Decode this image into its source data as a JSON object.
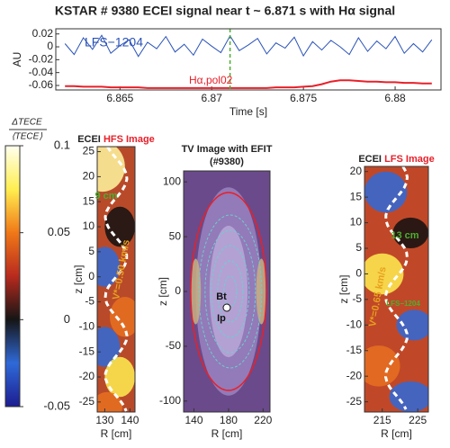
{
  "chart_data": [
    {
      "type": "line",
      "title": "KSTAR # 9380 ECEI signal near t ~ 6.871 s with Hα signal",
      "xlabel": "Time [s]",
      "ylabel": "AU",
      "x": [
        6.862,
        6.8625,
        6.863,
        6.8635,
        6.864,
        6.8645,
        6.865,
        6.8655,
        6.866,
        6.8665,
        6.867,
        6.8675,
        6.868,
        6.8685,
        6.869,
        6.8695,
        6.87,
        6.8705,
        6.871,
        6.8715,
        6.872,
        6.8725,
        6.873,
        6.8735,
        6.874,
        6.8745,
        6.875,
        6.8755,
        6.876,
        6.8765,
        6.877,
        6.8775,
        6.878,
        6.8785,
        6.879,
        6.8795,
        6.88,
        6.8805,
        6.881,
        6.8815,
        6.882
      ],
      "series": [
        {
          "name": "LFS−1204",
          "color": "#2a52b8",
          "values": [
            0.005,
            -0.012,
            0.014,
            -0.004,
            0.018,
            -0.01,
            0.002,
            0.011,
            -0.015,
            0.007,
            -0.003,
            0.016,
            -0.008,
            0.004,
            -0.013,
            0.012,
            0.001,
            -0.009,
            0.017,
            -0.006,
            0.003,
            0.013,
            -0.011,
            0.006,
            -0.002,
            0.015,
            -0.014,
            0.008,
            -0.005,
            0.01,
            0,
            -0.012,
            0.014,
            -0.007,
            0.009,
            -0.003,
            0.016,
            -0.01,
            0.005,
            -0.008,
            0.011
          ]
        },
        {
          "name": "Hα,pol02",
          "color": "#e8202a",
          "values": [
            -0.061,
            -0.061,
            -0.062,
            -0.062,
            -0.062,
            -0.063,
            -0.063,
            -0.063,
            -0.063,
            -0.064,
            -0.064,
            -0.064,
            -0.064,
            -0.064,
            -0.064,
            -0.064,
            -0.064,
            -0.064,
            -0.064,
            -0.064,
            -0.064,
            -0.064,
            -0.064,
            -0.063,
            -0.063,
            -0.063,
            -0.062,
            -0.061,
            -0.058,
            -0.054,
            -0.052,
            -0.052,
            -0.053,
            -0.054,
            -0.054,
            -0.055,
            -0.055,
            -0.056,
            -0.056,
            -0.057,
            -0.057
          ]
        }
      ],
      "vline": 6.871,
      "vline_color": "#4caf30",
      "xlim": [
        6.8615,
        6.8825
      ],
      "xticks": [
        6.865,
        6.87,
        6.875,
        6.88
      ],
      "ylim": [
        -0.067,
        0.028
      ],
      "yticks": [
        -0.06,
        -0.04,
        -0.02,
        0,
        0.02
      ]
    },
    {
      "type": "colorbar",
      "label_numerator": "ΔTECE",
      "label_denominator": "⟨TECE⟩",
      "colors": [
        "#1c1c90",
        "#2f6ad8",
        "#151515",
        "#b82a1e",
        "#f07818",
        "#ffee50",
        "#fffff0"
      ],
      "ylim": [
        -0.05,
        0.1
      ],
      "yticks": [
        -0.05,
        0,
        0.05,
        0.1
      ]
    },
    {
      "type": "image",
      "title": "ECEI",
      "title_highlight": "HFS Image",
      "xlabel": "R [cm]",
      "ylabel": "z [cm]",
      "xlim": [
        127,
        142
      ],
      "xticks": [
        130,
        140
      ],
      "ylim": [
        -27,
        26
      ],
      "yticks": [
        -25,
        -20,
        -15,
        -10,
        -5,
        0,
        5,
        10,
        15,
        20,
        25
      ],
      "annotations": [
        "9 cm",
        "V*=0.50 km/s"
      ]
    },
    {
      "type": "image",
      "title": "TV Image with EFIT",
      "subtitle": "(#9380)",
      "xlabel": "R [cm]",
      "ylabel": "z [cm]",
      "xlim": [
        128,
        228
      ],
      "xticks": [
        140,
        180,
        220
      ],
      "ylim": [
        -110,
        110
      ],
      "yticks": [
        -100,
        -50,
        0,
        50,
        100
      ],
      "annotations": [
        "Bt",
        "Ip"
      ]
    },
    {
      "type": "image",
      "title": "ECEI",
      "title_highlight": "LFS Image",
      "xlabel": "R [cm]",
      "ylabel": "z [cm]",
      "xlim": [
        210,
        228
      ],
      "xticks": [
        215,
        225
      ],
      "ylim": [
        -27,
        21
      ],
      "yticks": [
        -25,
        -20,
        -15,
        -10,
        -5,
        0,
        5,
        10,
        15,
        20
      ],
      "annotations": [
        "13 cm",
        "V*=0.65 km/s",
        "LFS−1204"
      ]
    }
  ]
}
